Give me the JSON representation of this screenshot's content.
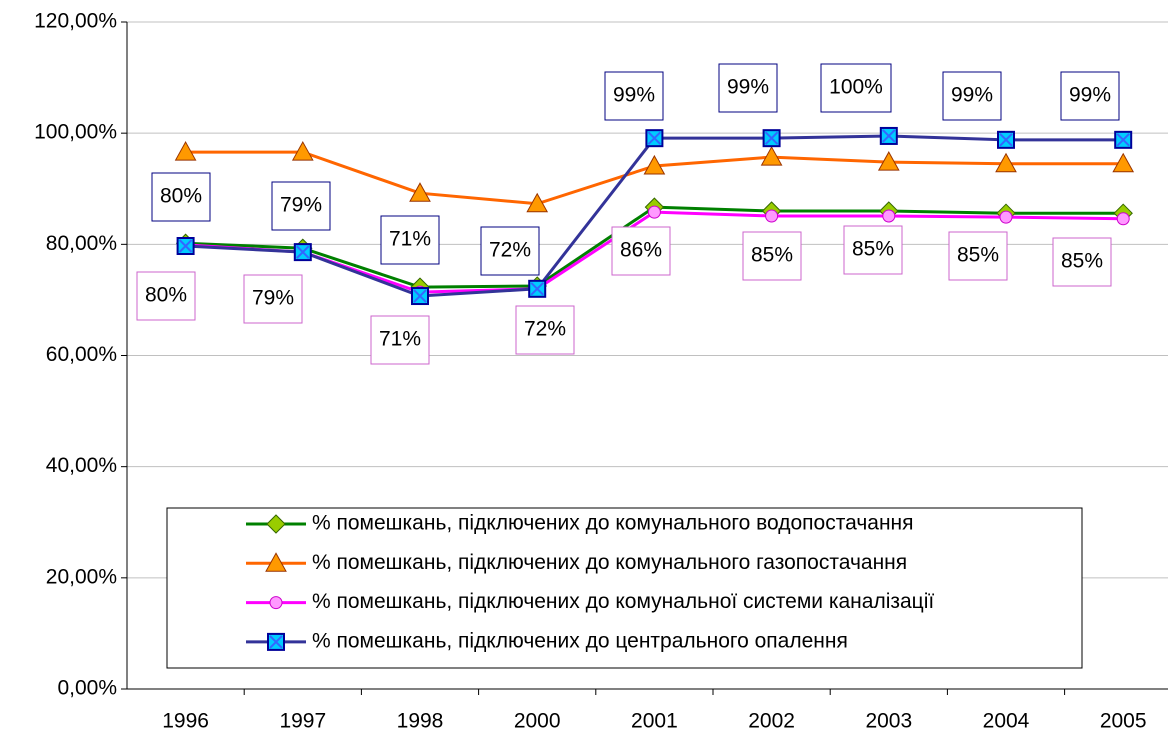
{
  "chart_data": {
    "type": "line",
    "categories": [
      "1996",
      "1997",
      "1998",
      "2000",
      "2001",
      "2002",
      "2003",
      "2004",
      "2005"
    ],
    "ylim": [
      0,
      120
    ],
    "yticks": [
      {
        "value": 0,
        "label": "0,00%"
      },
      {
        "value": 20,
        "label": "20,00%"
      },
      {
        "value": 40,
        "label": "40,00%"
      },
      {
        "value": 60,
        "label": "60,00%"
      },
      {
        "value": 80,
        "label": "80,00%"
      },
      {
        "value": 100,
        "label": "100,00%"
      },
      {
        "value": 120,
        "label": "120,00%"
      }
    ],
    "grid": true,
    "series": [
      {
        "name": "% помешкань, підключених до комунального водопостачання",
        "color": "#008000",
        "marker": "diamond",
        "values": [
          80.2,
          79.3,
          72.3,
          72.5,
          86.7,
          86.0,
          86.0,
          85.6,
          85.6
        ]
      },
      {
        "name": "% помешкань, підключених до комунального газопостачання",
        "color": "#ff6600",
        "marker": "triangle",
        "values": [
          96.6,
          96.6,
          89.2,
          87.3,
          94.1,
          95.7,
          94.8,
          94.5,
          94.5
        ]
      },
      {
        "name": "% помешкань, підключених до комунальної системи каналізації",
        "color": "#ff00ff",
        "marker": "circle",
        "values": [
          79.9,
          78.6,
          71.4,
          72.0,
          85.8,
          85.1,
          85.1,
          84.9,
          84.6
        ],
        "value_labels": [
          "80%",
          "79%",
          "71%",
          "72%",
          "86%",
          "85%",
          "85%",
          "85%",
          "85%"
        ]
      },
      {
        "name": "% помешкань, підключених до центрального опалення",
        "color": "#333399",
        "marker": "square",
        "values": [
          79.7,
          78.6,
          70.7,
          72.0,
          99.1,
          99.1,
          99.5,
          98.8,
          98.8
        ],
        "value_labels": [
          "80%",
          "79%",
          "71%",
          "72%",
          "99%",
          "99%",
          "100%",
          "99%",
          "99%"
        ]
      }
    ]
  }
}
